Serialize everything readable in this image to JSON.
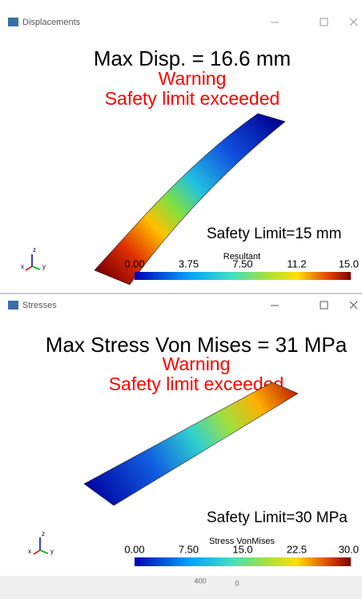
{
  "windows": [
    {
      "title": "Displacements",
      "headline": "Max Disp. = 16.6 mm",
      "warning": "Warning",
      "message": "Safety limit exceeded",
      "safety_limit": "Safety Limit=15 mm",
      "colorbar_title": "Resultant",
      "colorbar_ticks": [
        "0.00",
        "3.75",
        "7.50",
        "11.2",
        "15.0"
      ],
      "axes": [
        "z",
        "x",
        "y"
      ]
    },
    {
      "title": "Stresses",
      "headline": "Max Stress Von Mises = 31 MPa",
      "warning": "Warning",
      "message": "Safety limit exceeded",
      "safety_limit": "Safety Limit=30 MPa",
      "colorbar_title": "Stress VonMises",
      "colorbar_ticks": [
        "0.00",
        "7.50",
        "15.0",
        "22.5",
        "30.0"
      ],
      "axes": [
        "z",
        "x",
        "y"
      ]
    }
  ],
  "footer": [
    "400",
    "0"
  ]
}
